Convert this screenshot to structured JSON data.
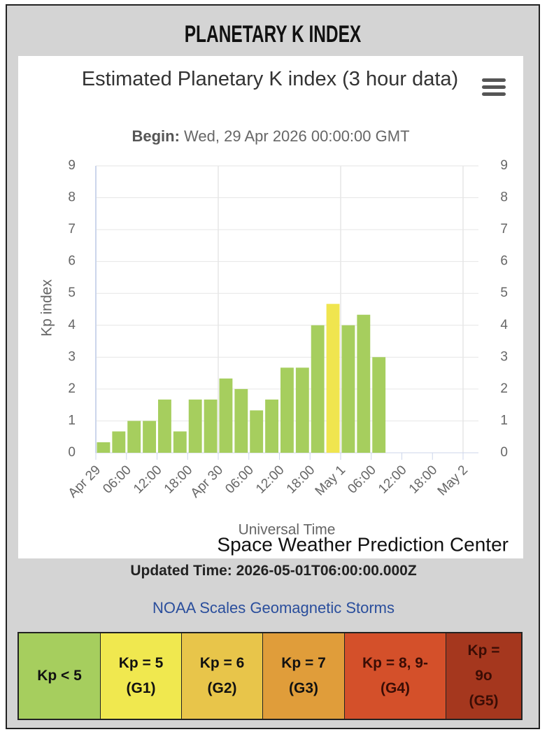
{
  "header": {
    "title": "PLANETARY K INDEX"
  },
  "chart_data": {
    "type": "bar",
    "title": "Estimated Planetary K index (3 hour data)",
    "subtitle_label": "Begin:",
    "subtitle": "Wed, 29 Apr 2026 00:00:00 GMT",
    "y_label": "Kp index",
    "x_label": "Universal Time",
    "credit": "Space Weather Prediction Center",
    "xticks": [
      "Apr 29",
      "06:00",
      "12:00",
      "18:00",
      "Apr 30",
      "06:00",
      "12:00",
      "18:00",
      "May 1",
      "06:00",
      "12:00",
      "18:00",
      "May 2"
    ],
    "values": [
      0.33,
      0.67,
      1,
      1,
      1.67,
      0.67,
      1.67,
      1.67,
      2.33,
      2,
      1.33,
      1.67,
      2.67,
      2.67,
      4,
      4.67,
      4,
      4.33,
      3
    ],
    "bar_colors": [
      "#a6ce5e",
      "#a6ce5e",
      "#a6ce5e",
      "#a6ce5e",
      "#a6ce5e",
      "#a6ce5e",
      "#a6ce5e",
      "#a6ce5e",
      "#a6ce5e",
      "#a6ce5e",
      "#a6ce5e",
      "#a6ce5e",
      "#a6ce5e",
      "#a6ce5e",
      "#a6ce5e",
      "#f0e54f",
      "#a6ce5e",
      "#a6ce5e",
      "#a6ce5e"
    ],
    "ylim": [
      0,
      9
    ],
    "yticks": [
      0,
      1,
      2,
      3,
      4,
      5,
      6,
      7,
      8,
      9
    ],
    "y2lim": [
      0,
      9
    ],
    "y2ticks": [
      0,
      1,
      2,
      3,
      4,
      5,
      6,
      7,
      8,
      9
    ],
    "grid": true
  },
  "updated": {
    "label": "Updated Time:",
    "value": "2026-05-01T06:00:00.000Z"
  },
  "link": "NOAA Scales Geomagnetic Storms",
  "scales": [
    {
      "lines": [
        "Kp < 5"
      ],
      "color": "#a6ce5e"
    },
    {
      "lines": [
        "Kp = 5",
        "(G1)"
      ],
      "color": "#f0e84f"
    },
    {
      "lines": [
        "Kp = 6",
        "(G2)"
      ],
      "color": "#e8c54a"
    },
    {
      "lines": [
        "Kp = 7",
        "(G3)"
      ],
      "color": "#e09d3a"
    },
    {
      "lines": [
        "Kp = 8, 9-",
        "(G4)"
      ],
      "color": "#d4502a"
    },
    {
      "lines": [
        "Kp =",
        "9o",
        "(G5)"
      ],
      "color": "#a5371e"
    }
  ]
}
